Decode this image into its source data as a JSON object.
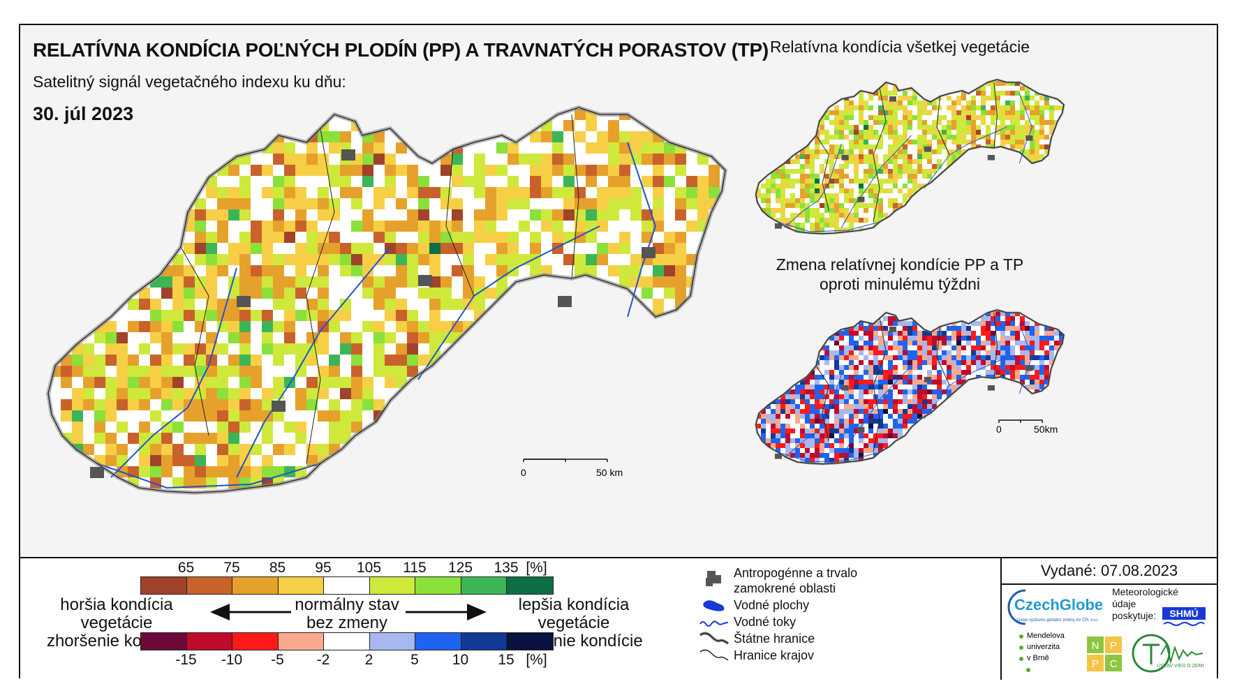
{
  "title": "RELATÍVNA KONDÍCIA POĽNÝCH PLODÍN (PP) A TRAVNATÝCH PORASTOV (TP)",
  "subtitle": "Satelitný signál vegetačného indexu ku dňu:",
  "date": "30. júl 2023",
  "inset_top_title": "Relatívna kondícia všetkej vegetácie",
  "inset_bottom_title_1": "Zmena relatívnej kondície PP a TP",
  "inset_bottom_title_2": "oproti minulému týždni",
  "scale_main": {
    "zero": "0",
    "end": "50 km"
  },
  "scale_inset": {
    "zero": "0",
    "end": "50km"
  },
  "legend_condition": {
    "ticks": [
      "65",
      "75",
      "85",
      "95",
      "105",
      "115",
      "125",
      "135",
      "[%]"
    ],
    "colors": [
      "#a0432a",
      "#c9622a",
      "#e6a12c",
      "#f7cf46",
      "#ffffff",
      "#cfe83c",
      "#8be03a",
      "#3db556",
      "#0d6f45"
    ]
  },
  "legend_change": {
    "ticks": [
      "-15",
      "-10",
      "-5",
      "-2",
      "2",
      "5",
      "10",
      "15",
      "[%]"
    ],
    "colors": [
      "#6b0a3a",
      "#c10a2c",
      "#ff1a1a",
      "#f9aa8e",
      "#ffffff",
      "#a6b8ef",
      "#1f64f0",
      "#123a96",
      "#0a1240"
    ]
  },
  "left_label": {
    "line1": "horšia kondícia vegetácie",
    "line2": "zhoršenie kondície"
  },
  "center_label": {
    "line1": "normálny stav",
    "line2": "bez zmeny"
  },
  "right_label": {
    "line1": "lepšia kondícia vegetácie",
    "line2": "zlepšenie kondície"
  },
  "map_key": [
    {
      "icon": "urban-area-icon",
      "label_1": "Antropogénne a trvalo",
      "label_2": "zamokrené oblasti"
    },
    {
      "icon": "water-body-icon",
      "label_1": "Vodné plochy",
      "label_2": ""
    },
    {
      "icon": "river-icon",
      "label_1": "Vodné toky",
      "label_2": ""
    },
    {
      "icon": "state-border-icon",
      "label_1": "Štátne hranice",
      "label_2": ""
    },
    {
      "icon": "region-border-icon",
      "label_1": "Hranice krajov",
      "label_2": ""
    }
  ],
  "issued": "Vydané: 07.08.2023",
  "logos": {
    "czechglobe": "CzechGlobe",
    "czechglobe_sub": "Ústav výzkumu globální změny AV ČR, v.v.i.",
    "meteo_text_1": "Meteorologické",
    "meteo_text_2": "údaje",
    "meteo_text_3": "poskytuje:",
    "shmu": "SHMÚ",
    "mendel_1": "Mendelova",
    "mendel_2": "univerzita",
    "mendel_3": "v Brně",
    "nppc": [
      "N",
      "P",
      "P",
      "C"
    ],
    "uvz": "ÚSTAV VIED O ZEMI"
  }
}
